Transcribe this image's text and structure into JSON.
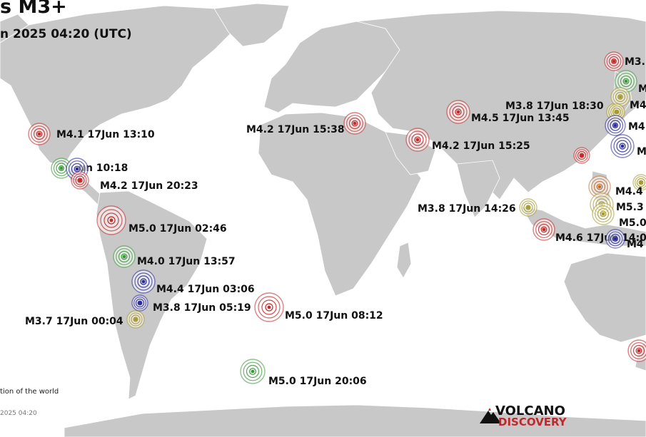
{
  "map": {
    "title": "s M3+",
    "subtitle": "n 2025 04:20 (UTC)",
    "footer_note": "tion of the world",
    "footer_timestamp": "2025 04:20",
    "logo": {
      "top": "VOLCANO",
      "bottom": "DISCOVERY",
      "accent": "#c0282d"
    },
    "colors": {
      "ocean": "#ffffff",
      "land": "#c8c8c8",
      "red": "#c42a2a",
      "green": "#3a9a3a",
      "blue": "#2a2a9a",
      "yellow": "#a89a30",
      "orange": "#c07030"
    },
    "quakes": [
      {
        "label": "M4.1 17Jun 13:10",
        "color": "red"
      },
      {
        "label": "un 10:18",
        "color": "green"
      },
      {
        "label": "",
        "color": "blue"
      },
      {
        "label": "M4.2 17Jun 20:23",
        "color": "red"
      },
      {
        "label": "M5.0 17Jun 02:46",
        "color": "red"
      },
      {
        "label": "M4.0 17Jun 13:57",
        "color": "green"
      },
      {
        "label": "M4.4 17Jun 03:06",
        "color": "blue"
      },
      {
        "label": "M3.8 17Jun 05:19",
        "color": "blue"
      },
      {
        "label": "M3.7 17Jun 00:04",
        "color": "yellow"
      },
      {
        "label": "M5.0 17Jun 08:12",
        "color": "red"
      },
      {
        "label": "M5.0 17Jun 20:06",
        "color": "green"
      },
      {
        "label": "M4.2 17Jun 15:38",
        "color": "red"
      },
      {
        "label": "M4.2 17Jun 15:25",
        "color": "red"
      },
      {
        "label": "M4.5 17Jun 13:45",
        "color": "red"
      },
      {
        "label": "M3.8 17Jun 14:26",
        "color": "yellow"
      },
      {
        "label": "M4.6 17Jun 14:0",
        "color": "red"
      },
      {
        "label": "M3.8 17Jun 18:30",
        "color": "yellow"
      },
      {
        "label": "M3.",
        "color": "red"
      },
      {
        "label": "M",
        "color": "green"
      },
      {
        "label": "",
        "color": "yellow"
      },
      {
        "label": "M4",
        "color": "yellow"
      },
      {
        "label": "M4",
        "color": "blue"
      },
      {
        "label": "M",
        "color": "blue"
      },
      {
        "label": "",
        "color": "red"
      },
      {
        "label": "",
        "color": "yellow"
      },
      {
        "label": "M4.4",
        "color": "orange"
      },
      {
        "label": "M5.3",
        "color": "yellow"
      },
      {
        "label": "M5.0",
        "color": "yellow"
      },
      {
        "label": "M4",
        "color": "blue"
      },
      {
        "label": "",
        "color": "red"
      }
    ]
  }
}
